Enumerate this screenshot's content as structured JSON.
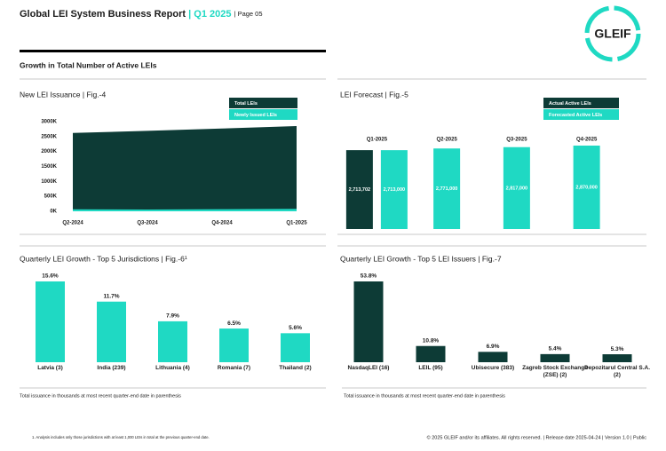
{
  "header": {
    "title": "Global LEI System Business Report",
    "separator": "|",
    "quarter": "Q1 2025",
    "page": "| Page 05",
    "logo": "GLEIF"
  },
  "section_title": "Growth in Total Number of Active LEIs",
  "chart_data": [
    {
      "type": "area",
      "title": "New LEI Issuance | Fig.-4",
      "categories": [
        "Q2-2024",
        "Q3-2024",
        "Q4-2024",
        "Q1-2025"
      ],
      "series": [
        {
          "name": "Total LEIs",
          "color": "#0d3b36",
          "values": [
            2620000,
            2690000,
            2770000,
            2850000
          ]
        },
        {
          "name": "Newly Issued LEIs",
          "color": "#1fd9c3",
          "values": [
            65000,
            60000,
            70000,
            80000
          ]
        }
      ],
      "ylim": [
        0,
        3000000
      ],
      "yticks": [
        {
          "value": 0,
          "label": "0K"
        },
        {
          "value": 500000,
          "label": "500K"
        },
        {
          "value": 1000000,
          "label": "1000K"
        },
        {
          "value": 1500000,
          "label": "1500K"
        },
        {
          "value": 2000000,
          "label": "2000K"
        },
        {
          "value": 2500000,
          "label": "2500K"
        },
        {
          "value": 3000000,
          "label": "3000K"
        }
      ],
      "legend": "top-right"
    },
    {
      "type": "bar",
      "title": "LEI Forecast | Fig.-5",
      "categories": [
        "Q1-2025",
        "Q2-2025",
        "Q3-2025",
        "Q4-2025"
      ],
      "series": [
        {
          "name": "Actual Active LEIs",
          "color": "#0d3b36",
          "values": [
            2713702,
            null,
            null,
            null
          ],
          "value_labels": [
            "2,713,702",
            null,
            null,
            null
          ]
        },
        {
          "name": "Forecasted Active LEIs",
          "color": "#1fd9c3",
          "values": [
            2713000,
            2771000,
            2817000,
            2870000
          ],
          "value_labels": [
            "2,713,000",
            "2,771,000",
            "2,817,000",
            "2,870,000"
          ]
        }
      ],
      "legend": "top-right"
    },
    {
      "type": "bar",
      "title": "Quarterly LEI Growth - Top 5 Jurisdictions | Fig.-6¹",
      "categories": [
        "Latvia (3)",
        "India (239)",
        "Lithuania (4)",
        "Romania (7)",
        "Thailand (2)"
      ],
      "values": [
        15.6,
        11.7,
        7.9,
        6.5,
        5.6
      ],
      "value_labels": [
        "15.6%",
        "11.7%",
        "7.9%",
        "6.5%",
        "5.6%"
      ],
      "color": "#1fd9c3",
      "note": "Total issuance in thousands at most recent quarter-end date in parenthesis"
    },
    {
      "type": "bar",
      "title": "Quarterly LEI Growth - Top 5 LEI Issuers | Fig.-7",
      "categories": [
        "NasdaqLEI (16)",
        "LEIL (95)",
        "Ubisecure (383)",
        "Zagreb Stock Exchange (ZSE) (2)",
        "Depozitarul Central S.A. (2)"
      ],
      "values": [
        53.8,
        10.8,
        6.9,
        5.4,
        5.3
      ],
      "value_labels": [
        "53.8%",
        "10.8%",
        "6.9%",
        "5.4%",
        "5.3%"
      ],
      "color": "#0d3b36",
      "note": "Total issuance in thousands at most recent quarter-end date in parenthesis"
    }
  ],
  "footer": {
    "footnote": "1. Analysis includes only those jurisdictions with at least 1,000 LEIs in total at the previous quarter-end date.",
    "copyright": "© 2025 GLEIF and/or its affiliates. All rights reserved. | Release date 2025-04-24 | Version 1.0 | Public"
  }
}
